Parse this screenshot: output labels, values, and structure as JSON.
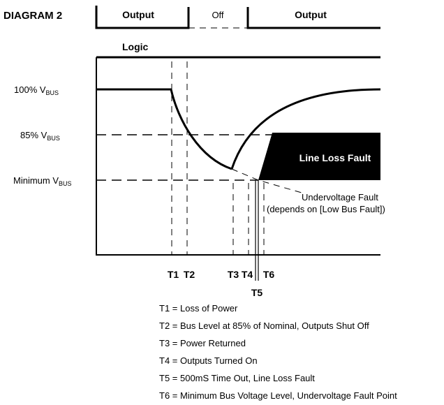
{
  "title": "DIAGRAM 2",
  "top_row": {
    "output_left": "Output",
    "off": "Off",
    "output_right": "Output"
  },
  "logic": "Logic",
  "levels": [
    {
      "main": "100% V",
      "sub": "BUS"
    },
    {
      "main": "85% V",
      "sub": "BUS"
    },
    {
      "main": "Minimum V",
      "sub": "BUS"
    }
  ],
  "fault_box": "Line Loss Fault",
  "undervoltage": {
    "line1": "Undervoltage Fault",
    "line2": "(depends on [Low Bus Fault])"
  },
  "time_markers": [
    "T1",
    "T2",
    "T3",
    "T4",
    "T5",
    "T6"
  ],
  "legend": [
    "T1 = Loss of Power",
    "T2 = Bus Level at 85% of Nominal, Outputs Shut Off",
    "T3 = Power Returned",
    "T4 = Outputs Turned On",
    "T5 = 500mS Time Out, Line Loss Fault",
    "T6 = Minimum Bus Voltage Level, Undervoltage Fault Point"
  ]
}
